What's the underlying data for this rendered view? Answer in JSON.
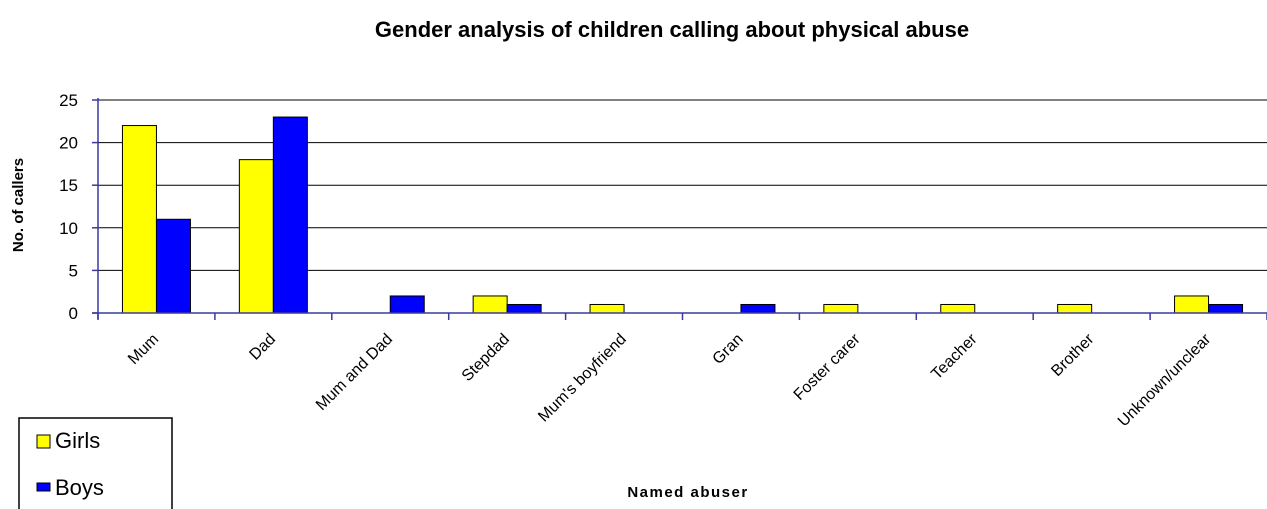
{
  "chart_data": {
    "type": "bar",
    "title": "Gender analysis of children calling about physical abuse",
    "xlabel": "Named abuser",
    "ylabel": "No. of callers",
    "categories": [
      "Mum",
      "Dad",
      "Mum and Dad",
      "Stepdad",
      "Mum's boyfriend",
      "Gran",
      "Foster carer",
      "Teacher",
      "Brother",
      "Unknown/unclear"
    ],
    "series": [
      {
        "name": "Girls",
        "color": "#ffff00",
        "values": [
          22,
          18,
          0,
          2,
          1,
          0,
          1,
          1,
          1,
          2
        ]
      },
      {
        "name": "Boys",
        "color": "#0000ff",
        "values": [
          11,
          23,
          2,
          1,
          0,
          1,
          0,
          0,
          0,
          1
        ]
      }
    ],
    "ylim": [
      0,
      25
    ],
    "yticks": [
      0,
      5,
      10,
      15,
      20,
      25
    ],
    "grid": true,
    "legend_position": "bottom-left"
  }
}
